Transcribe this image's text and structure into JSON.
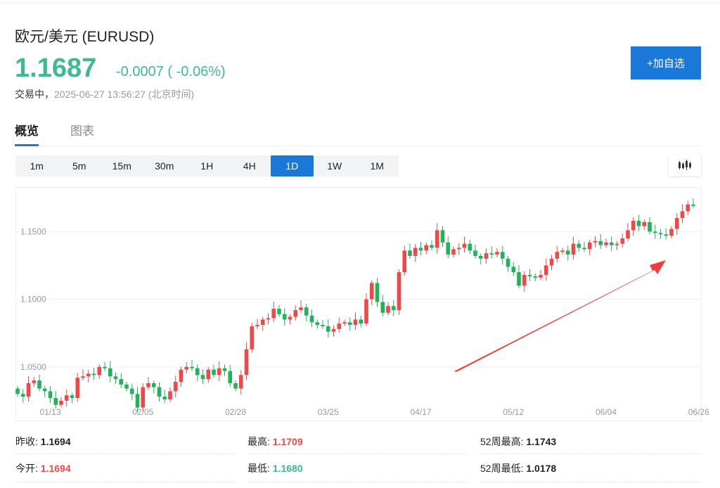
{
  "header": {
    "title": "欧元/美元 (EURUSD)",
    "price": "1.1687",
    "change": "-0.0007 ( -0.06%)",
    "status": "交易中，",
    "timestamp": "2025-06-27 13:56:27 (北京时间)",
    "add_watchlist": "+加自选"
  },
  "tabs": [
    {
      "label": "概览",
      "active": true
    },
    {
      "label": "图表",
      "active": false
    }
  ],
  "periods": [
    {
      "label": "1m"
    },
    {
      "label": "5m"
    },
    {
      "label": "15m"
    },
    {
      "label": "30m"
    },
    {
      "label": "1H"
    },
    {
      "label": "4H"
    },
    {
      "label": "1D",
      "active": true
    },
    {
      "label": "1W"
    },
    {
      "label": "1M"
    }
  ],
  "chart_type_icon": "candlestick-icon",
  "colors": {
    "accent": "#1a78d8",
    "up": "#f04848",
    "down": "#1fb45a",
    "price_down": "#3dba8f"
  },
  "chart_data": {
    "type": "candlestick",
    "ylim": [
      1.0104,
      1.1824
    ],
    "yticks": [
      "1.0500",
      "1.1000",
      "1.1500"
    ],
    "yticks_values": [
      1.05,
      1.1,
      1.15
    ],
    "xticks": [
      "01/13",
      "02/05",
      "02/28",
      "03/25",
      "04/17",
      "05/12",
      "06/04",
      "06/26"
    ],
    "xticks_index": [
      6,
      23,
      40,
      57,
      74,
      91,
      108,
      125
    ],
    "first_open": 1.034,
    "closes": [
      1.03,
      1.028,
      1.038,
      1.04,
      1.034,
      1.032,
      1.027,
      1.022,
      1.025,
      1.029,
      1.027,
      1.042,
      1.043,
      1.045,
      1.044,
      1.05,
      1.049,
      1.043,
      1.041,
      1.037,
      1.034,
      1.03,
      1.02,
      1.035,
      1.038,
      1.035,
      1.028,
      1.026,
      1.032,
      1.039,
      1.048,
      1.05,
      1.049,
      1.044,
      1.041,
      1.048,
      1.044,
      1.049,
      1.047,
      1.038,
      1.034,
      1.044,
      1.063,
      1.08,
      1.081,
      1.085,
      1.086,
      1.093,
      1.089,
      1.085,
      1.087,
      1.092,
      1.094,
      1.088,
      1.083,
      1.081,
      1.08,
      1.076,
      1.078,
      1.082,
      1.083,
      1.081,
      1.085,
      1.082,
      1.1,
      1.112,
      1.098,
      1.09,
      1.095,
      1.092,
      1.12,
      1.136,
      1.132,
      1.138,
      1.136,
      1.14,
      1.138,
      1.151,
      1.142,
      1.133,
      1.137,
      1.138,
      1.141,
      1.136,
      1.132,
      1.13,
      1.134,
      1.133,
      1.135,
      1.13,
      1.124,
      1.12,
      1.11,
      1.118,
      1.117,
      1.116,
      1.118,
      1.125,
      1.13,
      1.135,
      1.136,
      1.133,
      1.141,
      1.138,
      1.137,
      1.142,
      1.143,
      1.14,
      1.142,
      1.14,
      1.141,
      1.145,
      1.151,
      1.158,
      1.154,
      1.157,
      1.15,
      1.149,
      1.148,
      1.147,
      1.152,
      1.16,
      1.165,
      1.17,
      1.169
    ],
    "annotation": "red arrow pointing up-right indicating uptrend",
    "grid": true
  },
  "stats": [
    {
      "label": "昨收:",
      "value": "1.1694",
      "color": "#222"
    },
    {
      "label": "最高:",
      "value": "1.1709",
      "color": "#f04848"
    },
    {
      "label": "52周最高:",
      "value": "1.1743",
      "color": "#222"
    },
    {
      "label": "今开:",
      "value": "1.1694",
      "color": "#f04848"
    },
    {
      "label": "最低:",
      "value": "1.1680",
      "color": "#3dba8f"
    },
    {
      "label": "52周最低:",
      "value": "1.0178",
      "color": "#222"
    }
  ]
}
